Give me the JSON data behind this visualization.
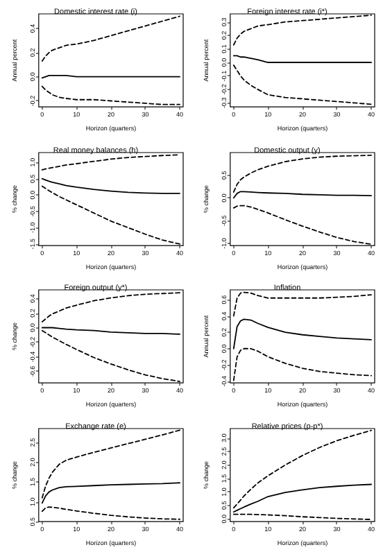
{
  "chart_data": [
    {
      "type": "line",
      "title": "Domestic interest rate (i)",
      "xlabel": "Horizon (quarters)",
      "ylabel": "Annual percent",
      "x": [
        0,
        1,
        2,
        3,
        5,
        7,
        10,
        15,
        20,
        25,
        30,
        35,
        40
      ],
      "xlim": [
        -1,
        41
      ],
      "xticks": [
        0,
        10,
        20,
        30,
        40
      ],
      "ylim": [
        -0.25,
        0.52
      ],
      "yticks": [
        -0.2,
        {
          "value": 0,
          "label": "0.0"
        },
        0.2,
        0.4
      ],
      "marker": "none",
      "series": [
        {
          "color": "#000000",
          "line_style": "solid",
          "values": [
            -0.01,
            0.0,
            0.01,
            0.01,
            0.01,
            0.01,
            0.0,
            0.0,
            0.0,
            0.0,
            0.0,
            0.0,
            0.0
          ]
        },
        {
          "color": "#000000",
          "line_style": "dashed",
          "values": [
            0.13,
            0.17,
            0.2,
            0.22,
            0.24,
            0.26,
            0.27,
            0.3,
            0.34,
            0.38,
            0.42,
            0.46,
            0.5
          ]
        },
        {
          "color": "#000000",
          "line_style": "dashed",
          "values": [
            -0.08,
            -0.11,
            -0.13,
            -0.15,
            -0.17,
            -0.18,
            -0.19,
            -0.19,
            -0.2,
            -0.21,
            -0.22,
            -0.23,
            -0.23
          ]
        }
      ]
    },
    {
      "type": "line",
      "title": "Foreign interest rate (i*)",
      "xlabel": "Horizon (quarters)",
      "ylabel": "Annual percent",
      "x": [
        0,
        1,
        2,
        3,
        5,
        7,
        10,
        15,
        20,
        25,
        30,
        35,
        40
      ],
      "xlim": [
        -1,
        41
      ],
      "xticks": [
        0,
        10,
        20,
        30,
        40
      ],
      "ylim": [
        -0.33,
        0.36
      ],
      "yticks": [
        -0.3,
        -0.2,
        -0.1,
        {
          "value": 0,
          "label": "0.0"
        },
        0.1,
        0.2,
        0.3
      ],
      "marker": "none",
      "series": [
        {
          "color": "#000000",
          "line_style": "solid",
          "values": [
            0.05,
            0.05,
            0.04,
            0.04,
            0.03,
            0.02,
            0.0,
            0.0,
            0.0,
            0.0,
            0.0,
            0.0,
            0.0
          ]
        },
        {
          "color": "#000000",
          "line_style": "dashed",
          "values": [
            0.13,
            0.18,
            0.21,
            0.23,
            0.25,
            0.27,
            0.28,
            0.3,
            0.31,
            0.32,
            0.33,
            0.34,
            0.35
          ]
        },
        {
          "color": "#000000",
          "line_style": "dashed",
          "values": [
            -0.02,
            -0.06,
            -0.1,
            -0.13,
            -0.17,
            -0.2,
            -0.24,
            -0.26,
            -0.27,
            -0.28,
            -0.29,
            -0.3,
            -0.31
          ]
        }
      ]
    },
    {
      "type": "line",
      "title": "Real money balances (h)",
      "xlabel": "Horizon (quarters)",
      "ylabel": "% change",
      "x": [
        0,
        1,
        2,
        3,
        5,
        7,
        10,
        15,
        20,
        25,
        30,
        35,
        40
      ],
      "xlim": [
        -1,
        41
      ],
      "xticks": [
        0,
        10,
        20,
        30,
        40
      ],
      "ylim": [
        -1.55,
        1.3
      ],
      "yticks": [
        -1.5,
        {
          "value": -1,
          "label": "-1.0"
        },
        -0.5,
        {
          "value": 0,
          "label": "0.0"
        },
        0.5,
        {
          "value": 1,
          "label": "1.0"
        }
      ],
      "marker": "none",
      "series": [
        {
          "color": "#000000",
          "line_style": "solid",
          "values": [
            0.5,
            0.46,
            0.42,
            0.39,
            0.34,
            0.29,
            0.24,
            0.17,
            0.12,
            0.08,
            0.06,
            0.05,
            0.05
          ]
        },
        {
          "color": "#000000",
          "line_style": "dashed",
          "values": [
            0.77,
            0.8,
            0.82,
            0.84,
            0.88,
            0.92,
            0.96,
            1.03,
            1.1,
            1.15,
            1.18,
            1.21,
            1.23
          ]
        },
        {
          "color": "#000000",
          "line_style": "dashed",
          "values": [
            0.27,
            0.2,
            0.13,
            0.07,
            -0.05,
            -0.15,
            -0.3,
            -0.55,
            -0.8,
            -1.0,
            -1.2,
            -1.38,
            -1.5
          ]
        }
      ]
    },
    {
      "type": "line",
      "title": "Domestic output (y)",
      "xlabel": "Horizon (quarters)",
      "ylabel": "% change",
      "x": [
        0,
        1,
        2,
        3,
        5,
        7,
        10,
        15,
        20,
        25,
        30,
        35,
        40
      ],
      "xlim": [
        -1,
        41
      ],
      "xticks": [
        0,
        10,
        20,
        30,
        40
      ],
      "ylim": [
        -1.05,
        1.0
      ],
      "yticks": [
        {
          "value": -1,
          "label": "-1.0"
        },
        -0.5,
        {
          "value": 0,
          "label": "0.0"
        },
        0.5
      ],
      "marker": "none",
      "series": [
        {
          "color": "#000000",
          "line_style": "solid",
          "values": [
            0.0,
            0.1,
            0.14,
            0.14,
            0.13,
            0.12,
            0.11,
            0.1,
            0.08,
            0.07,
            0.06,
            0.06,
            0.05
          ]
        },
        {
          "color": "#000000",
          "line_style": "dashed",
          "values": [
            0.13,
            0.3,
            0.4,
            0.46,
            0.55,
            0.62,
            0.7,
            0.8,
            0.86,
            0.9,
            0.92,
            0.93,
            0.94
          ]
        },
        {
          "color": "#000000",
          "line_style": "dashed",
          "values": [
            -0.22,
            -0.18,
            -0.17,
            -0.17,
            -0.2,
            -0.25,
            -0.33,
            -0.48,
            -0.62,
            -0.75,
            -0.87,
            -0.96,
            -1.02
          ]
        }
      ]
    },
    {
      "type": "line",
      "title": "Foreign output (y*)",
      "xlabel": "Horizon (quarters)",
      "ylabel": "% change",
      "x": [
        0,
        1,
        2,
        3,
        5,
        7,
        10,
        15,
        20,
        25,
        30,
        35,
        40
      ],
      "xlim": [
        -1,
        41
      ],
      "xticks": [
        0,
        10,
        20,
        30,
        40
      ],
      "ylim": [
        -0.76,
        0.52
      ],
      "yticks": [
        -0.6,
        -0.4,
        -0.2,
        {
          "value": 0,
          "label": "0.0"
        },
        0.2,
        0.4
      ],
      "marker": "none",
      "series": [
        {
          "color": "#000000",
          "line_style": "solid",
          "values": [
            0.0,
            0.0,
            0.0,
            0.0,
            -0.01,
            -0.02,
            -0.03,
            -0.04,
            -0.06,
            -0.07,
            -0.08,
            -0.08,
            -0.09
          ]
        },
        {
          "color": "#000000",
          "line_style": "dashed",
          "values": [
            0.08,
            0.12,
            0.16,
            0.19,
            0.23,
            0.27,
            0.31,
            0.37,
            0.41,
            0.44,
            0.46,
            0.47,
            0.48
          ]
        },
        {
          "color": "#000000",
          "line_style": "dashed",
          "values": [
            -0.04,
            -0.07,
            -0.1,
            -0.13,
            -0.18,
            -0.23,
            -0.3,
            -0.41,
            -0.5,
            -0.58,
            -0.65,
            -0.7,
            -0.74
          ]
        }
      ]
    },
    {
      "type": "line",
      "title": "Inflation",
      "xlabel": "Horizon (quarters)",
      "ylabel": "Annual percent",
      "x": [
        0,
        1,
        2,
        3,
        5,
        7,
        10,
        15,
        20,
        25,
        30,
        35,
        40
      ],
      "xlim": [
        -1,
        41
      ],
      "xticks": [
        0,
        10,
        20,
        30,
        40
      ],
      "ylim": [
        -0.42,
        0.72
      ],
      "yticks": [
        -0.4,
        -0.2,
        {
          "value": 0,
          "label": "0.0"
        },
        0.2,
        0.4,
        0.6
      ],
      "marker": "none",
      "series": [
        {
          "color": "#000000",
          "line_style": "solid",
          "values": [
            0.0,
            0.27,
            0.34,
            0.36,
            0.35,
            0.31,
            0.26,
            0.2,
            0.17,
            0.15,
            0.13,
            0.12,
            0.11
          ]
        },
        {
          "color": "#000000",
          "line_style": "dashed",
          "values": [
            0.4,
            0.62,
            0.68,
            0.69,
            0.68,
            0.65,
            0.62,
            0.62,
            0.62,
            0.62,
            0.63,
            0.64,
            0.66
          ]
        },
        {
          "color": "#000000",
          "line_style": "dashed",
          "values": [
            -0.39,
            -0.1,
            -0.02,
            0.0,
            0.0,
            -0.03,
            -0.1,
            -0.18,
            -0.24,
            -0.28,
            -0.3,
            -0.32,
            -0.33
          ]
        }
      ]
    },
    {
      "type": "line",
      "title": "Exchange rate (e)",
      "xlabel": "Horizon (quarters)",
      "ylabel": "% change",
      "x": [
        0,
        1,
        2,
        3,
        5,
        7,
        10,
        15,
        20,
        25,
        30,
        35,
        40
      ],
      "xlim": [
        -1,
        41
      ],
      "xticks": [
        0,
        10,
        20,
        30,
        40
      ],
      "ylim": [
        0.5,
        2.85
      ],
      "yticks": [
        0.5,
        {
          "value": 1,
          "label": "1.0"
        },
        1.5,
        {
          "value": 2,
          "label": "2.0"
        },
        2.5
      ],
      "marker": "none",
      "series": [
        {
          "color": "#000000",
          "line_style": "solid",
          "values": [
            0.97,
            1.15,
            1.25,
            1.3,
            1.36,
            1.38,
            1.39,
            1.41,
            1.43,
            1.44,
            1.45,
            1.46,
            1.48
          ]
        },
        {
          "color": "#000000",
          "line_style": "dashed",
          "values": [
            1.1,
            1.4,
            1.6,
            1.75,
            1.95,
            2.05,
            2.13,
            2.25,
            2.36,
            2.47,
            2.58,
            2.69,
            2.81
          ]
        },
        {
          "color": "#000000",
          "line_style": "dashed",
          "values": [
            0.76,
            0.85,
            0.87,
            0.86,
            0.84,
            0.81,
            0.77,
            0.71,
            0.66,
            0.62,
            0.59,
            0.57,
            0.56
          ]
        }
      ]
    },
    {
      "type": "line",
      "title": "Relative prices (p-p*)",
      "xlabel": "Horizon (quarters)",
      "ylabel": "% change",
      "x": [
        0,
        1,
        2,
        3,
        5,
        7,
        10,
        15,
        20,
        25,
        30,
        35,
        40
      ],
      "xlim": [
        -1,
        41
      ],
      "xticks": [
        0,
        10,
        20,
        30,
        40
      ],
      "ylim": [
        -0.1,
        3.35
      ],
      "yticks": [
        {
          "value": 0,
          "label": "0.0"
        },
        0.5,
        {
          "value": 1,
          "label": "1.0"
        },
        1.5,
        {
          "value": 2,
          "label": "2.0"
        },
        2.5,
        {
          "value": 3,
          "label": "3.0"
        }
      ],
      "marker": "none",
      "series": [
        {
          "color": "#000000",
          "line_style": "solid",
          "values": [
            0.26,
            0.32,
            0.38,
            0.44,
            0.55,
            0.65,
            0.83,
            0.98,
            1.08,
            1.16,
            1.21,
            1.25,
            1.28
          ]
        },
        {
          "color": "#000000",
          "line_style": "dashed",
          "values": [
            0.41,
            0.55,
            0.7,
            0.85,
            1.1,
            1.33,
            1.6,
            2.0,
            2.35,
            2.65,
            2.9,
            3.1,
            3.28
          ]
        },
        {
          "color": "#000000",
          "line_style": "dashed",
          "values": [
            0.17,
            0.17,
            0.17,
            0.17,
            0.17,
            0.16,
            0.15,
            0.12,
            0.08,
            0.05,
            0.02,
            0.0,
            -0.02
          ]
        }
      ]
    }
  ]
}
